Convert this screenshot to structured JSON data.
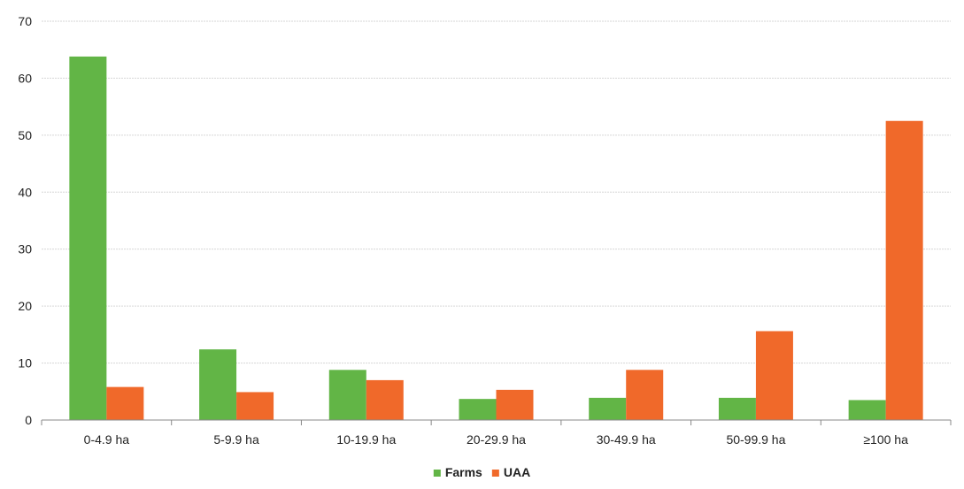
{
  "chart_data": {
    "type": "bar",
    "categories": [
      "0-4.9 ha",
      "5-9.9 ha",
      "10-19.9 ha",
      "20-29.9 ha",
      "30-49.9 ha",
      "50-99.9 ha",
      "≥100 ha"
    ],
    "series": [
      {
        "name": "Farms",
        "color": "#62b546",
        "values": [
          63.8,
          12.4,
          8.8,
          3.7,
          3.9,
          3.9,
          3.5
        ]
      },
      {
        "name": "UAA",
        "color": "#f0692a",
        "values": [
          5.8,
          4.9,
          7.0,
          5.3,
          8.8,
          15.6,
          52.5
        ]
      }
    ],
    "title": "",
    "xlabel": "",
    "ylabel": "",
    "ylim": [
      0,
      70
    ],
    "yticks": [
      "0",
      "10",
      "20",
      "30",
      "40",
      "50",
      "60",
      "70"
    ],
    "grid": true,
    "legend_position": "bottom-center",
    "colors": {
      "grid": "#d6d6d6",
      "axis": "#888888",
      "text": "#222222"
    }
  }
}
